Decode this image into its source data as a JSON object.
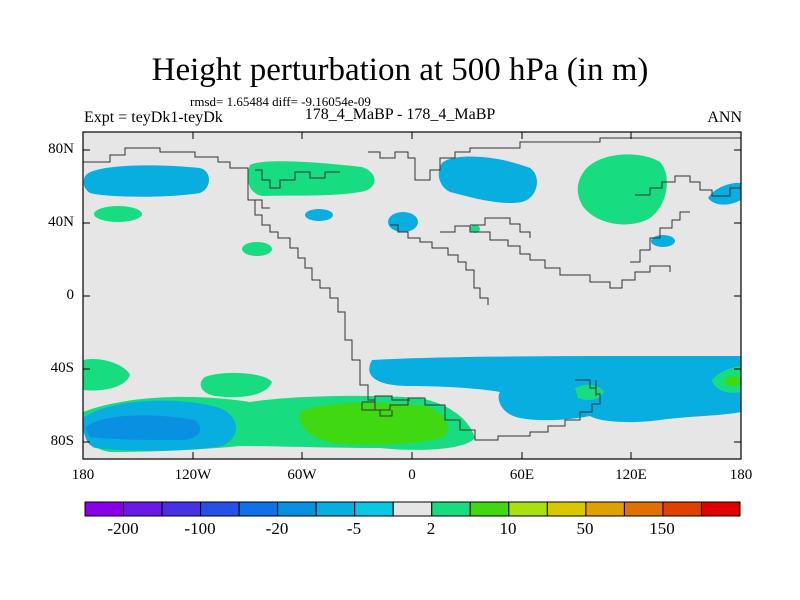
{
  "title": "Height perturbation at 500 hPa (in m)",
  "stats": "rmsd= 1.65484 diff= -9.16054e-09",
  "expt": "Expt = teyDk1-teyDk",
  "case": "178_4_MaBP - 178_4_MaBP",
  "season": "ANN",
  "chart_data": {
    "type": "heatmap",
    "title": "Height perturbation at 500 hPa (in m)",
    "x_ticks": [
      "180",
      "120W",
      "60W",
      "0",
      "60E",
      "120E",
      "180"
    ],
    "y_ticks": [
      "80N",
      "40N",
      "0",
      "40S",
      "80S"
    ],
    "xlim": [
      -180,
      180
    ],
    "ylim": [
      -90,
      90
    ],
    "colorbar": {
      "levels": [
        -200,
        -150,
        -100,
        -50,
        -20,
        -10,
        -5,
        -2,
        2,
        5,
        10,
        20,
        50,
        100,
        150,
        200
      ],
      "labels": [
        "-200",
        "-100",
        "-20",
        "-5",
        "2",
        "10",
        "50",
        "150"
      ],
      "colors": [
        "#8a00e6",
        "#6a1ae6",
        "#4830e6",
        "#2850e6",
        "#1070e6",
        "#0a90e0",
        "#08aee0",
        "#0ac8e4",
        "#e6e6e6",
        "#18dc80",
        "#40d810",
        "#a8e010",
        "#d8c800",
        "#e0a000",
        "#e07000",
        "#e04000",
        "#e00000"
      ]
    },
    "features": [
      {
        "name": "n-pacific-negative",
        "value": -5,
        "lon": [
          -178,
          -108
        ],
        "lat": [
          50,
          72
        ]
      },
      {
        "name": "na-west-positive",
        "value": 5,
        "lon": [
          -80,
          -25
        ],
        "lat": [
          55,
          70
        ]
      },
      {
        "name": "n-atlantic-negative",
        "value": -5,
        "lon": [
          15,
          57
        ],
        "lat": [
          50,
          75
        ]
      },
      {
        "name": "siberia-positive",
        "value": 5,
        "lon": [
          95,
          140
        ],
        "lat": [
          40,
          75
        ]
      },
      {
        "name": "nw-pacific-negative",
        "value": -5,
        "lon": [
          160,
          180
        ],
        "lat": [
          49,
          57
        ]
      },
      {
        "name": "s-ocean-band-negative",
        "value": -5,
        "lon": [
          -20,
          180
        ],
        "lat": [
          -75,
          -35
        ]
      },
      {
        "name": "s-pacific-negative",
        "value": -10,
        "lon": [
          -180,
          -95
        ],
        "lat": [
          -85,
          -55
        ]
      },
      {
        "name": "s-atlantic-positive",
        "value": 10,
        "lon": [
          -60,
          30
        ],
        "lat": [
          -85,
          -60
        ]
      }
    ]
  }
}
